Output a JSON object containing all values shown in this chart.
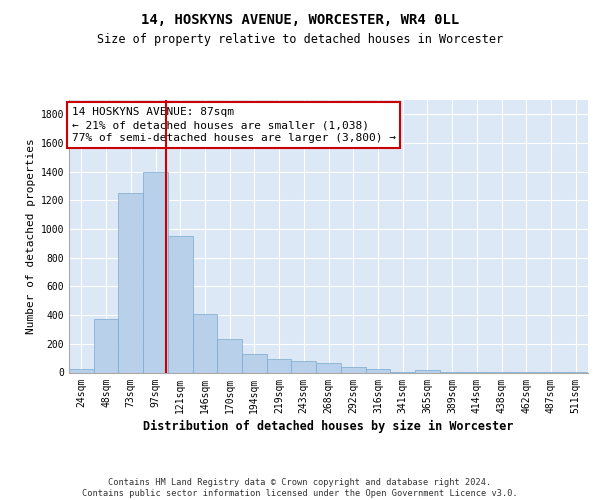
{
  "title": "14, HOSKYNS AVENUE, WORCESTER, WR4 0LL",
  "subtitle": "Size of property relative to detached houses in Worcester",
  "xlabel": "Distribution of detached houses by size in Worcester",
  "ylabel": "Number of detached properties",
  "categories": [
    "24sqm",
    "48sqm",
    "73sqm",
    "97sqm",
    "121sqm",
    "146sqm",
    "170sqm",
    "194sqm",
    "219sqm",
    "243sqm",
    "268sqm",
    "292sqm",
    "316sqm",
    "341sqm",
    "365sqm",
    "389sqm",
    "414sqm",
    "438sqm",
    "462sqm",
    "487sqm",
    "511sqm"
  ],
  "values": [
    25,
    375,
    1255,
    1395,
    950,
    410,
    235,
    130,
    95,
    82,
    68,
    38,
    22,
    5,
    18,
    5,
    2,
    2,
    2,
    2,
    2
  ],
  "bar_color": "#b8d0ea",
  "bar_edge_color": "#7aaacf",
  "vline_color": "#cc0000",
  "vline_pos": 3.42,
  "annotation_line1": "14 HOSKYNS AVENUE: 87sqm",
  "annotation_line2": "← 21% of detached houses are smaller (1,038)",
  "annotation_line3": "77% of semi-detached houses are larger (3,800) →",
  "annotation_box_edgecolor": "#cc0000",
  "ylim": [
    0,
    1900
  ],
  "yticks": [
    0,
    200,
    400,
    600,
    800,
    1000,
    1200,
    1400,
    1600,
    1800
  ],
  "footer": "Contains HM Land Registry data © Crown copyright and database right 2024.\nContains public sector information licensed under the Open Government Licence v3.0.",
  "title_fontsize": 10,
  "subtitle_fontsize": 8.5,
  "tick_fontsize": 7,
  "ylabel_fontsize": 8,
  "xlabel_fontsize": 8.5,
  "ann_fontsize": 8
}
